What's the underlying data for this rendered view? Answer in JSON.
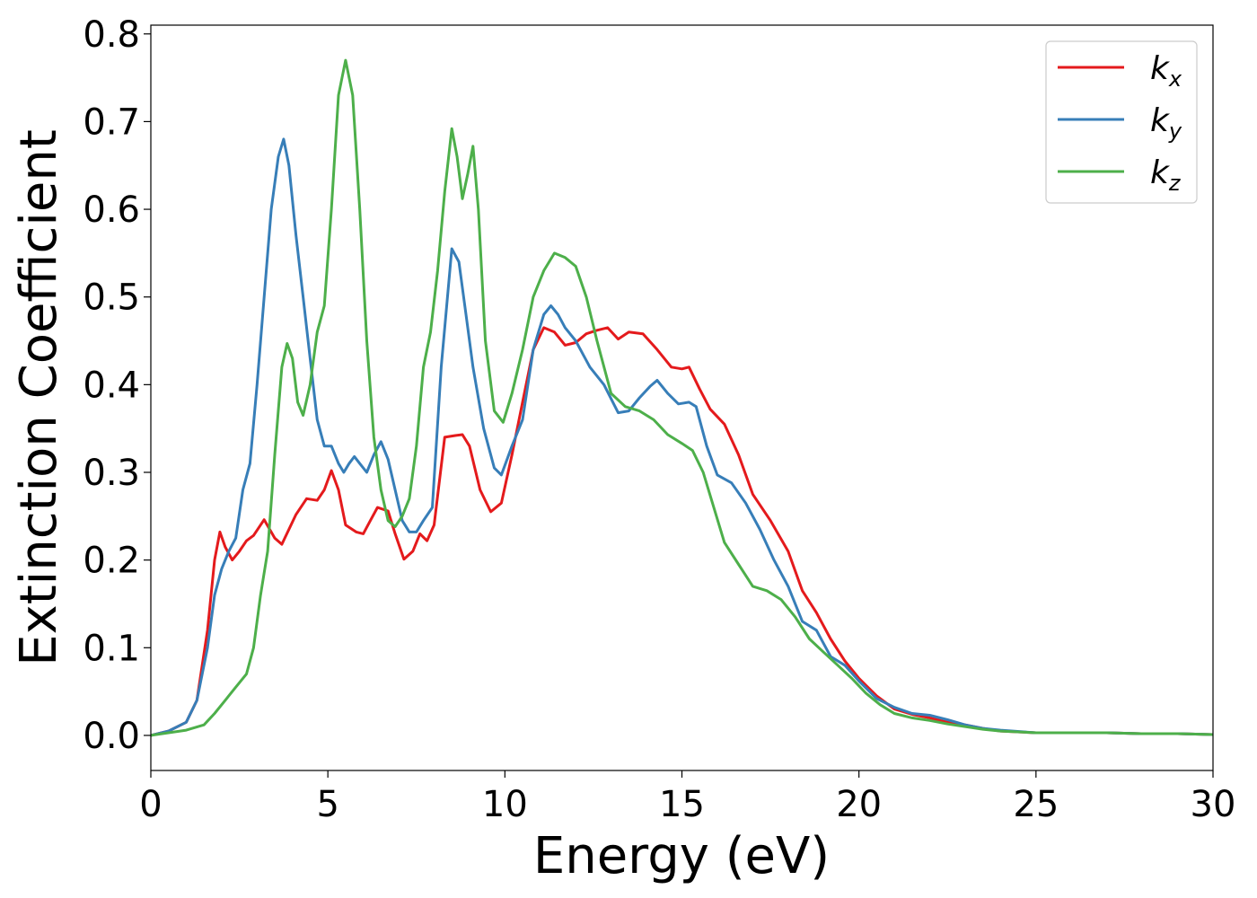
{
  "chart_data": {
    "type": "line",
    "title": "",
    "xlabel": "Energy (eV)",
    "ylabel": "Extinction Coefficient",
    "xlim": [
      0,
      30
    ],
    "ylim": [
      -0.04,
      0.81
    ],
    "xticks": [
      0,
      5,
      10,
      15,
      20,
      25,
      30
    ],
    "xtick_labels": [
      "0",
      "5",
      "10",
      "15",
      "20",
      "25",
      "30"
    ],
    "yticks": [
      0.0,
      0.1,
      0.2,
      0.3,
      0.4,
      0.5,
      0.6,
      0.7,
      0.8
    ],
    "ytick_labels": [
      "0.0",
      "0.1",
      "0.2",
      "0.3",
      "0.4",
      "0.5",
      "0.6",
      "0.7",
      "0.8"
    ],
    "grid": false,
    "legend_position": "top-right",
    "series": [
      {
        "name": "kx",
        "legend_base": "k",
        "legend_sub": "x",
        "color": "#e41a1c",
        "points": [
          [
            0,
            0
          ],
          [
            0.5,
            0.005
          ],
          [
            1.0,
            0.015
          ],
          [
            1.3,
            0.04
          ],
          [
            1.6,
            0.12
          ],
          [
            1.8,
            0.2
          ],
          [
            1.95,
            0.232
          ],
          [
            2.1,
            0.215
          ],
          [
            2.3,
            0.2
          ],
          [
            2.5,
            0.21
          ],
          [
            2.7,
            0.222
          ],
          [
            2.9,
            0.228
          ],
          [
            3.2,
            0.246
          ],
          [
            3.5,
            0.225
          ],
          [
            3.7,
            0.218
          ],
          [
            3.9,
            0.235
          ],
          [
            4.1,
            0.252
          ],
          [
            4.4,
            0.27
          ],
          [
            4.7,
            0.268
          ],
          [
            4.9,
            0.28
          ],
          [
            5.1,
            0.302
          ],
          [
            5.3,
            0.28
          ],
          [
            5.5,
            0.24
          ],
          [
            5.8,
            0.232
          ],
          [
            6.0,
            0.23
          ],
          [
            6.2,
            0.245
          ],
          [
            6.4,
            0.26
          ],
          [
            6.7,
            0.256
          ],
          [
            6.9,
            0.23
          ],
          [
            7.15,
            0.201
          ],
          [
            7.4,
            0.21
          ],
          [
            7.6,
            0.23
          ],
          [
            7.8,
            0.222
          ],
          [
            8.0,
            0.24
          ],
          [
            8.3,
            0.34
          ],
          [
            8.6,
            0.342
          ],
          [
            8.8,
            0.343
          ],
          [
            9.0,
            0.33
          ],
          [
            9.3,
            0.28
          ],
          [
            9.6,
            0.255
          ],
          [
            9.9,
            0.265
          ],
          [
            10.2,
            0.32
          ],
          [
            10.5,
            0.38
          ],
          [
            10.8,
            0.44
          ],
          [
            11.1,
            0.465
          ],
          [
            11.4,
            0.46
          ],
          [
            11.7,
            0.445
          ],
          [
            12.0,
            0.448
          ],
          [
            12.3,
            0.458
          ],
          [
            12.6,
            0.462
          ],
          [
            12.9,
            0.465
          ],
          [
            13.2,
            0.452
          ],
          [
            13.5,
            0.46
          ],
          [
            13.9,
            0.458
          ],
          [
            14.3,
            0.44
          ],
          [
            14.7,
            0.42
          ],
          [
            15.0,
            0.418
          ],
          [
            15.2,
            0.42
          ],
          [
            15.5,
            0.395
          ],
          [
            15.8,
            0.372
          ],
          [
            16.2,
            0.355
          ],
          [
            16.6,
            0.32
          ],
          [
            17.0,
            0.275
          ],
          [
            17.5,
            0.245
          ],
          [
            18.0,
            0.21
          ],
          [
            18.4,
            0.165
          ],
          [
            18.8,
            0.14
          ],
          [
            19.2,
            0.11
          ],
          [
            19.6,
            0.085
          ],
          [
            20.0,
            0.065
          ],
          [
            20.5,
            0.045
          ],
          [
            21.0,
            0.03
          ],
          [
            21.5,
            0.024
          ],
          [
            22.0,
            0.02
          ],
          [
            22.5,
            0.015
          ],
          [
            23.0,
            0.012
          ],
          [
            23.5,
            0.008
          ],
          [
            24.0,
            0.005
          ],
          [
            25.0,
            0.003
          ],
          [
            26.0,
            0.003
          ],
          [
            27.0,
            0.003
          ],
          [
            28.0,
            0.002
          ],
          [
            29.0,
            0.002
          ],
          [
            30.0,
            0.001
          ]
        ]
      },
      {
        "name": "ky",
        "legend_base": "k",
        "legend_sub": "y",
        "color": "#377eb8",
        "points": [
          [
            0,
            0
          ],
          [
            0.5,
            0.005
          ],
          [
            1.0,
            0.015
          ],
          [
            1.3,
            0.04
          ],
          [
            1.6,
            0.1
          ],
          [
            1.8,
            0.16
          ],
          [
            2.0,
            0.19
          ],
          [
            2.2,
            0.21
          ],
          [
            2.4,
            0.225
          ],
          [
            2.6,
            0.28
          ],
          [
            2.8,
            0.31
          ],
          [
            3.0,
            0.4
          ],
          [
            3.2,
            0.5
          ],
          [
            3.4,
            0.6
          ],
          [
            3.6,
            0.66
          ],
          [
            3.75,
            0.68
          ],
          [
            3.9,
            0.65
          ],
          [
            4.1,
            0.57
          ],
          [
            4.3,
            0.5
          ],
          [
            4.5,
            0.43
          ],
          [
            4.7,
            0.36
          ],
          [
            4.9,
            0.33
          ],
          [
            5.1,
            0.33
          ],
          [
            5.3,
            0.31
          ],
          [
            5.45,
            0.3
          ],
          [
            5.6,
            0.31
          ],
          [
            5.75,
            0.318
          ],
          [
            5.9,
            0.31
          ],
          [
            6.1,
            0.3
          ],
          [
            6.3,
            0.32
          ],
          [
            6.5,
            0.335
          ],
          [
            6.7,
            0.315
          ],
          [
            6.9,
            0.28
          ],
          [
            7.1,
            0.245
          ],
          [
            7.3,
            0.232
          ],
          [
            7.5,
            0.232
          ],
          [
            7.7,
            0.245
          ],
          [
            7.95,
            0.26
          ],
          [
            8.2,
            0.42
          ],
          [
            8.5,
            0.555
          ],
          [
            8.7,
            0.54
          ],
          [
            8.9,
            0.48
          ],
          [
            9.1,
            0.42
          ],
          [
            9.4,
            0.35
          ],
          [
            9.7,
            0.305
          ],
          [
            9.9,
            0.297
          ],
          [
            10.2,
            0.33
          ],
          [
            10.5,
            0.36
          ],
          [
            10.8,
            0.44
          ],
          [
            11.1,
            0.48
          ],
          [
            11.3,
            0.49
          ],
          [
            11.5,
            0.48
          ],
          [
            11.7,
            0.465
          ],
          [
            12.0,
            0.45
          ],
          [
            12.4,
            0.42
          ],
          [
            12.8,
            0.4
          ],
          [
            13.2,
            0.368
          ],
          [
            13.5,
            0.37
          ],
          [
            13.8,
            0.385
          ],
          [
            14.1,
            0.398
          ],
          [
            14.3,
            0.405
          ],
          [
            14.6,
            0.39
          ],
          [
            14.9,
            0.378
          ],
          [
            15.2,
            0.38
          ],
          [
            15.4,
            0.375
          ],
          [
            15.7,
            0.33
          ],
          [
            16.0,
            0.297
          ],
          [
            16.4,
            0.288
          ],
          [
            16.8,
            0.265
          ],
          [
            17.2,
            0.235
          ],
          [
            17.6,
            0.2
          ],
          [
            18.0,
            0.17
          ],
          [
            18.4,
            0.13
          ],
          [
            18.8,
            0.12
          ],
          [
            19.2,
            0.09
          ],
          [
            19.6,
            0.08
          ],
          [
            20.0,
            0.062
          ],
          [
            20.5,
            0.042
          ],
          [
            21.0,
            0.032
          ],
          [
            21.5,
            0.025
          ],
          [
            22.0,
            0.023
          ],
          [
            22.5,
            0.018
          ],
          [
            23.0,
            0.012
          ],
          [
            23.5,
            0.008
          ],
          [
            24.0,
            0.006
          ],
          [
            25.0,
            0.003
          ],
          [
            26.0,
            0.003
          ],
          [
            27.0,
            0.003
          ],
          [
            28.0,
            0.002
          ],
          [
            29.0,
            0.002
          ],
          [
            30.0,
            0.001
          ]
        ]
      },
      {
        "name": "kz",
        "legend_base": "k",
        "legend_sub": "z",
        "color": "#4daf4a",
        "points": [
          [
            0,
            0
          ],
          [
            0.5,
            0.003
          ],
          [
            1.0,
            0.006
          ],
          [
            1.5,
            0.012
          ],
          [
            1.8,
            0.025
          ],
          [
            2.1,
            0.04
          ],
          [
            2.4,
            0.055
          ],
          [
            2.7,
            0.07
          ],
          [
            2.9,
            0.1
          ],
          [
            3.1,
            0.16
          ],
          [
            3.3,
            0.21
          ],
          [
            3.5,
            0.32
          ],
          [
            3.7,
            0.42
          ],
          [
            3.85,
            0.447
          ],
          [
            4.0,
            0.43
          ],
          [
            4.15,
            0.38
          ],
          [
            4.3,
            0.365
          ],
          [
            4.5,
            0.4
          ],
          [
            4.7,
            0.46
          ],
          [
            4.9,
            0.49
          ],
          [
            5.1,
            0.6
          ],
          [
            5.3,
            0.73
          ],
          [
            5.5,
            0.77
          ],
          [
            5.7,
            0.73
          ],
          [
            5.9,
            0.6
          ],
          [
            6.1,
            0.45
          ],
          [
            6.3,
            0.34
          ],
          [
            6.5,
            0.28
          ],
          [
            6.7,
            0.245
          ],
          [
            6.9,
            0.238
          ],
          [
            7.1,
            0.25
          ],
          [
            7.3,
            0.27
          ],
          [
            7.5,
            0.33
          ],
          [
            7.7,
            0.42
          ],
          [
            7.9,
            0.46
          ],
          [
            8.1,
            0.53
          ],
          [
            8.3,
            0.62
          ],
          [
            8.5,
            0.692
          ],
          [
            8.65,
            0.66
          ],
          [
            8.8,
            0.612
          ],
          [
            8.95,
            0.64
          ],
          [
            9.1,
            0.672
          ],
          [
            9.25,
            0.6
          ],
          [
            9.45,
            0.45
          ],
          [
            9.7,
            0.37
          ],
          [
            9.95,
            0.357
          ],
          [
            10.2,
            0.39
          ],
          [
            10.5,
            0.44
          ],
          [
            10.8,
            0.5
          ],
          [
            11.1,
            0.53
          ],
          [
            11.4,
            0.55
          ],
          [
            11.7,
            0.545
          ],
          [
            12.0,
            0.535
          ],
          [
            12.3,
            0.5
          ],
          [
            12.6,
            0.45
          ],
          [
            13.0,
            0.39
          ],
          [
            13.4,
            0.375
          ],
          [
            13.8,
            0.37
          ],
          [
            14.2,
            0.36
          ],
          [
            14.6,
            0.343
          ],
          [
            15.0,
            0.333
          ],
          [
            15.3,
            0.325
          ],
          [
            15.6,
            0.3
          ],
          [
            15.9,
            0.26
          ],
          [
            16.2,
            0.22
          ],
          [
            16.6,
            0.195
          ],
          [
            17.0,
            0.17
          ],
          [
            17.4,
            0.165
          ],
          [
            17.8,
            0.155
          ],
          [
            18.2,
            0.135
          ],
          [
            18.6,
            0.11
          ],
          [
            19.0,
            0.095
          ],
          [
            19.4,
            0.08
          ],
          [
            19.8,
            0.065
          ],
          [
            20.2,
            0.048
          ],
          [
            20.6,
            0.035
          ],
          [
            21.0,
            0.025
          ],
          [
            21.5,
            0.02
          ],
          [
            22.0,
            0.017
          ],
          [
            22.5,
            0.013
          ],
          [
            23.0,
            0.01
          ],
          [
            23.5,
            0.007
          ],
          [
            24.0,
            0.005
          ],
          [
            25.0,
            0.003
          ],
          [
            26.0,
            0.003
          ],
          [
            27.0,
            0.003
          ],
          [
            28.0,
            0.002
          ],
          [
            29.0,
            0.002
          ],
          [
            30.0,
            0.001
          ]
        ]
      }
    ]
  }
}
